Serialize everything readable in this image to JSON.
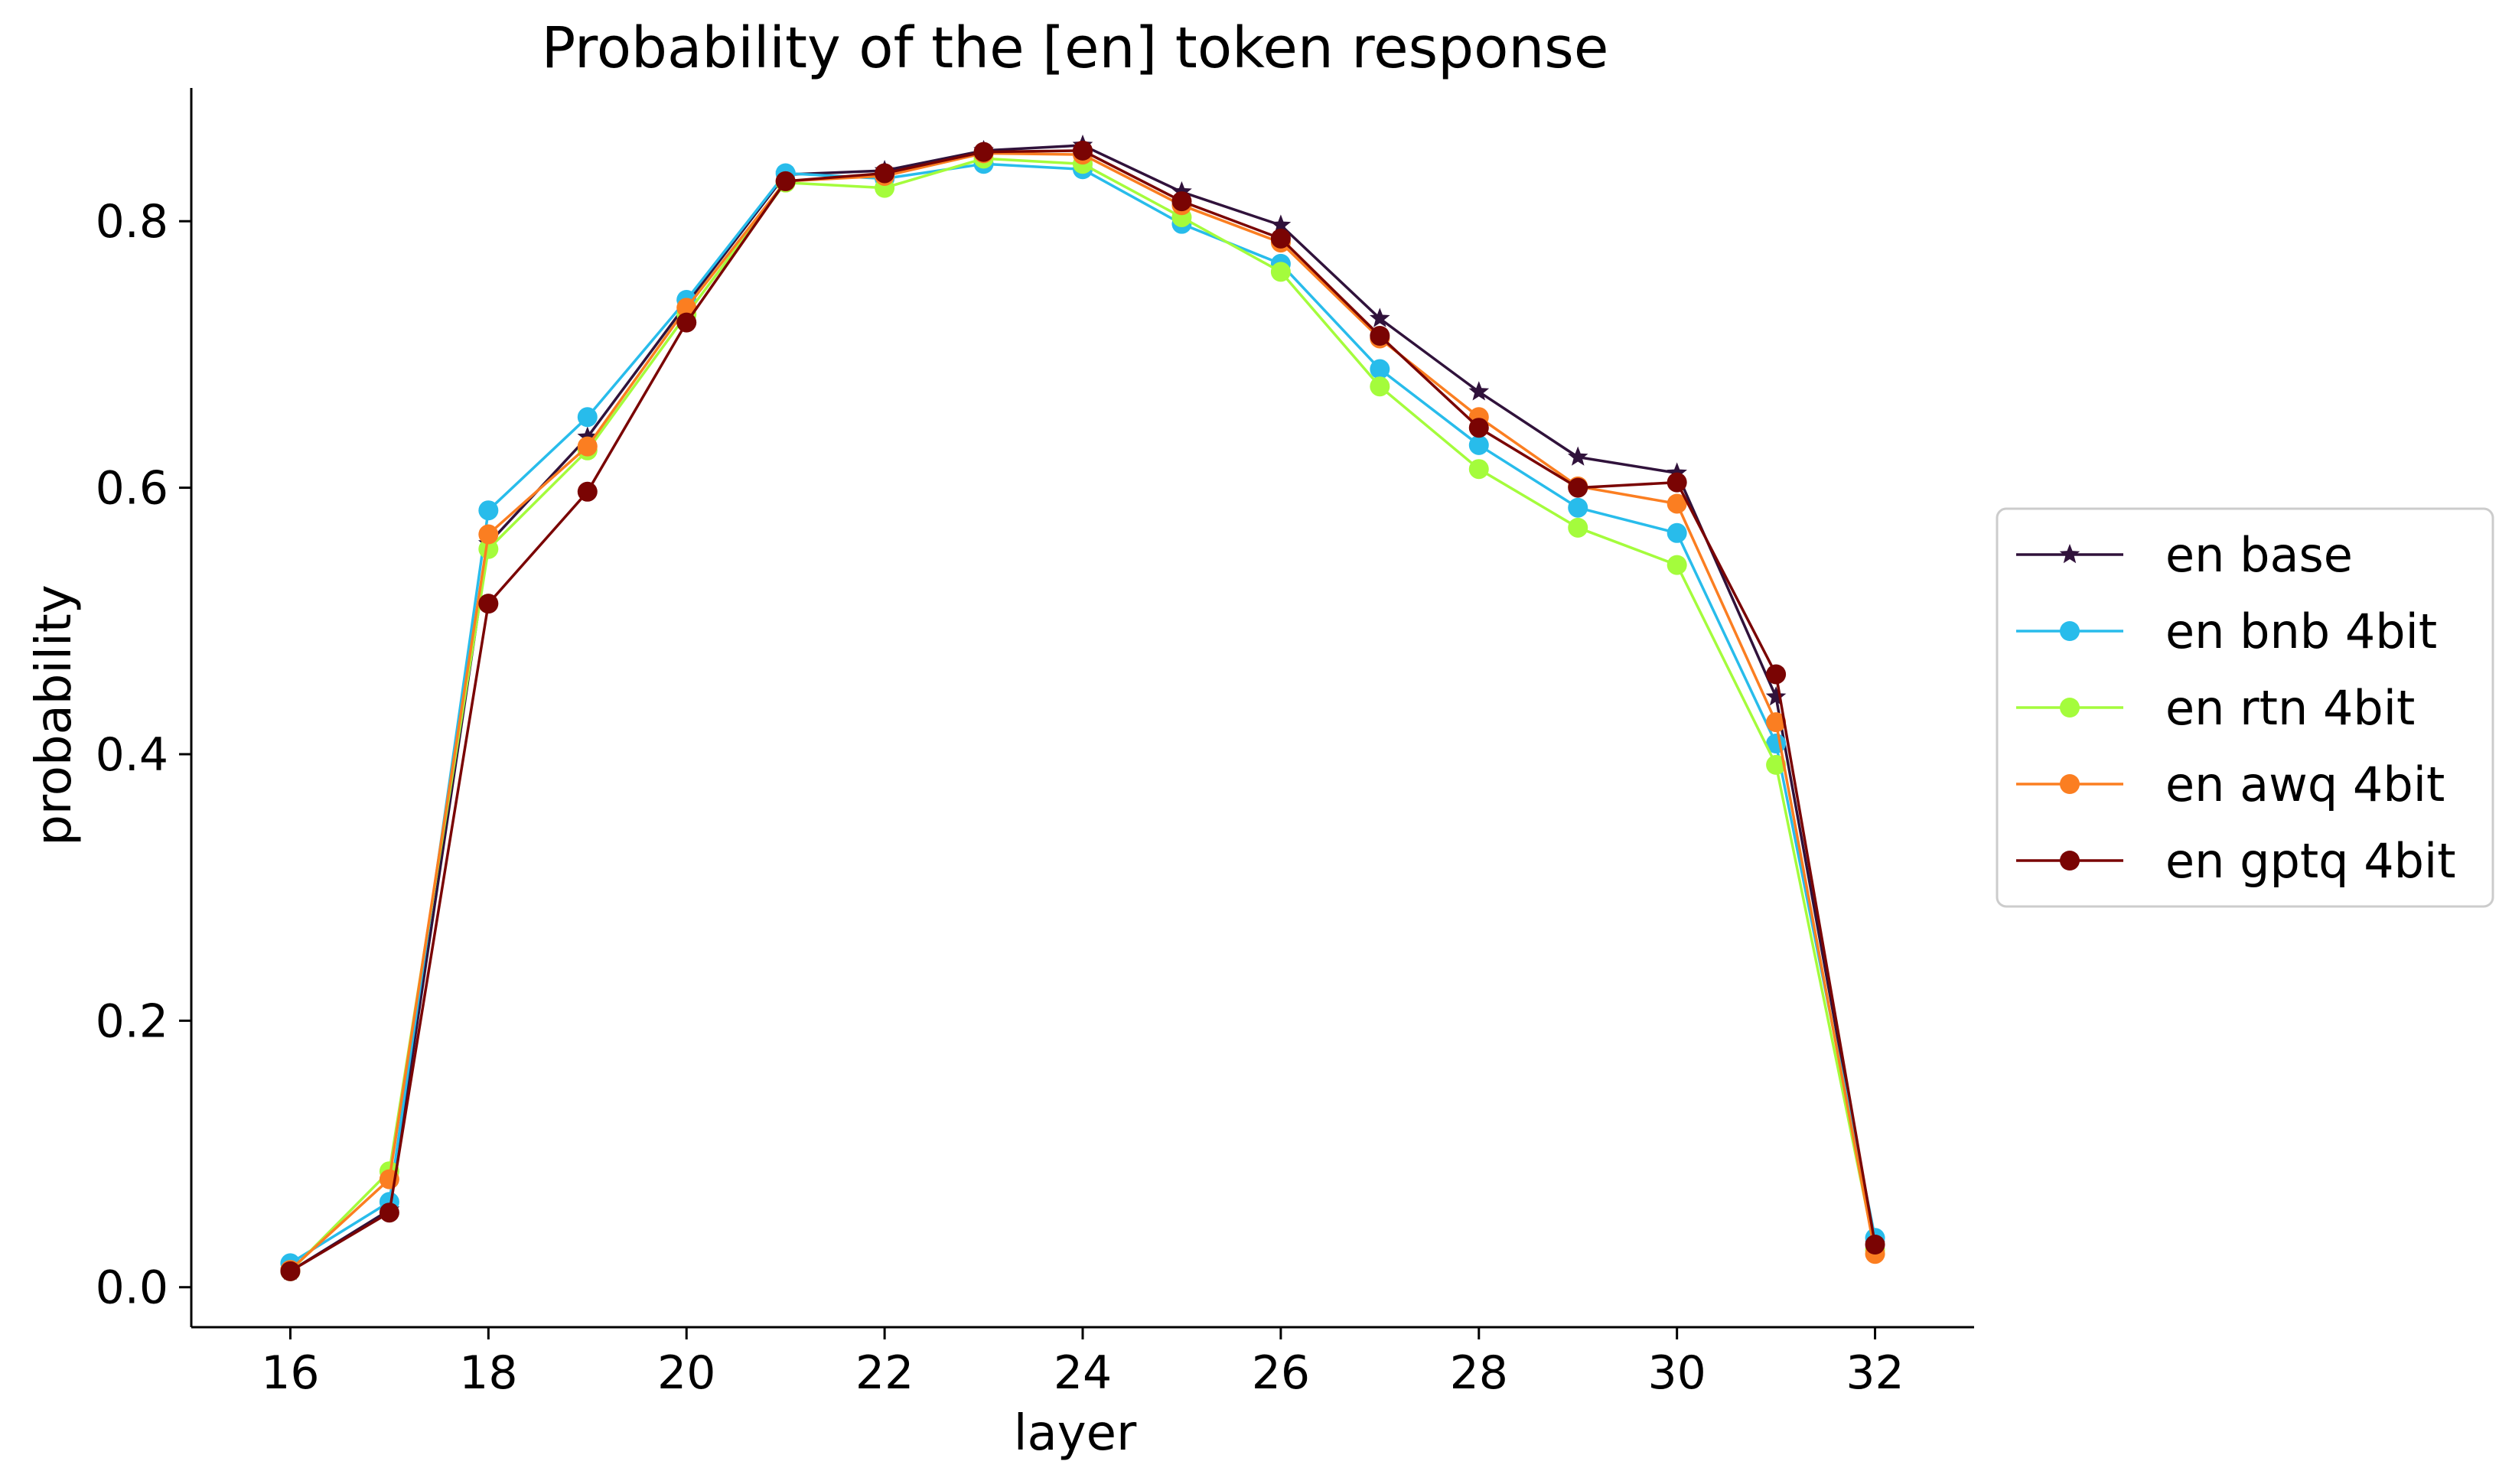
{
  "chart_data": {
    "type": "line",
    "title": "Probability of the [en] token response",
    "xlabel": "layer",
    "ylabel": "probability",
    "x": [
      16,
      17,
      18,
      19,
      20,
      21,
      22,
      23,
      24,
      25,
      26,
      27,
      28,
      29,
      30,
      31,
      32
    ],
    "xlim": [
      15,
      33
    ],
    "ylim": [
      -0.03,
      0.9
    ],
    "xticks": [
      16,
      18,
      20,
      22,
      24,
      26,
      28,
      30,
      32
    ],
    "yticks": [
      0.0,
      0.2,
      0.4,
      0.6,
      0.8
    ],
    "xtick_labels": [
      "16",
      "18",
      "20",
      "22",
      "24",
      "26",
      "28",
      "30",
      "32"
    ],
    "ytick_labels": [
      "0.0",
      "0.2",
      "0.4",
      "0.6",
      "0.8"
    ],
    "grid": false,
    "legend_position": "right",
    "series": [
      {
        "name": "en base",
        "color": "#30123b",
        "marker": "star",
        "values": [
          0.012,
          0.058,
          0.558,
          0.638,
          0.738,
          0.835,
          0.838,
          0.853,
          0.857,
          0.822,
          0.797,
          0.727,
          0.672,
          0.623,
          0.611,
          0.443,
          0.032
        ]
      },
      {
        "name": "en bnb 4bit",
        "color": "#28bceb",
        "marker": "circle",
        "values": [
          0.018,
          0.064,
          0.583,
          0.653,
          0.741,
          0.836,
          0.832,
          0.843,
          0.839,
          0.798,
          0.768,
          0.689,
          0.632,
          0.585,
          0.566,
          0.408,
          0.037
        ]
      },
      {
        "name": "en rtn 4bit",
        "color": "#a4fc3c",
        "marker": "circle",
        "values": [
          0.012,
          0.087,
          0.554,
          0.628,
          0.73,
          0.829,
          0.825,
          0.847,
          0.843,
          0.803,
          0.762,
          0.676,
          0.614,
          0.57,
          0.542,
          0.392,
          0.028
        ]
      },
      {
        "name": "en awq 4bit",
        "color": "#fb7e21",
        "marker": "circle",
        "values": [
          0.013,
          0.081,
          0.565,
          0.631,
          0.735,
          0.83,
          0.834,
          0.851,
          0.85,
          0.812,
          0.784,
          0.712,
          0.653,
          0.601,
          0.588,
          0.424,
          0.025
        ]
      },
      {
        "name": "en gptq 4bit",
        "color": "#7a0403",
        "marker": "circle",
        "values": [
          0.012,
          0.056,
          0.513,
          0.597,
          0.724,
          0.83,
          0.836,
          0.852,
          0.853,
          0.815,
          0.787,
          0.714,
          0.645,
          0.6,
          0.604,
          0.46,
          0.032
        ]
      }
    ]
  }
}
